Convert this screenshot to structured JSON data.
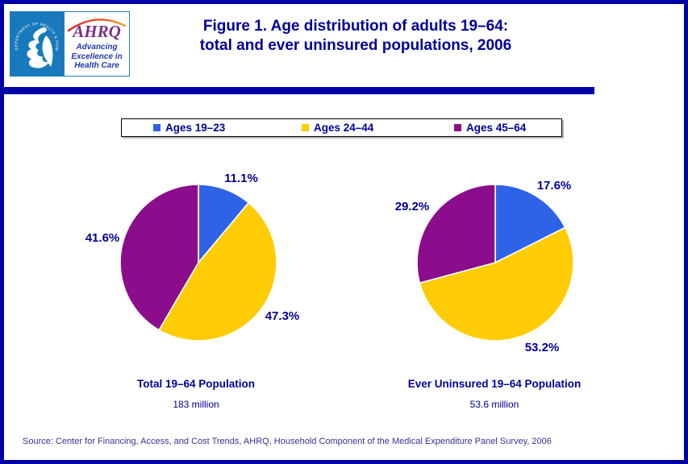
{
  "page": {
    "title_line1": "Figure 1. Age distribution of adults 19–64:",
    "title_line2": "total and ever uninsured populations, 2006",
    "source": "Source: Center for Financing, Access, and Cost Trends, AHRQ, Household Component of the Medical Expenditure Panel Survey, 2006"
  },
  "logo": {
    "ahrq_text": "AHRQ",
    "tagline_line1": "Advancing",
    "tagline_line2": "Excellence in",
    "tagline_line3": "Health Care",
    "hhs_seal_text": "DEPARTMENT OF HEALTH & HUMAN SERVICES · USA"
  },
  "legend": {
    "items": [
      {
        "label": "Ages 19–23",
        "color": "#2E63E8"
      },
      {
        "label": "Ages 24–44",
        "color": "#FFCC05"
      },
      {
        "label": "Ages 45–64",
        "color": "#8C0D8C"
      }
    ]
  },
  "colors": {
    "accent_navy": "#000099",
    "border_navy": "#0101A8",
    "hhs_blue": "#187ABC",
    "ahrq_purple": "#7B2E88"
  },
  "chart_data": [
    {
      "type": "pie",
      "title": "Total 19–64 Population",
      "subtitle": "183 million",
      "categories": [
        "Ages 19–23",
        "Ages 24–44",
        "Ages 45–64"
      ],
      "values": [
        11.1,
        47.3,
        41.6
      ],
      "labels": [
        "11.1%",
        "47.3%",
        "41.6%"
      ],
      "colors": [
        "#2E63E8",
        "#FFCC05",
        "#8C0D8C"
      ],
      "start_angle_deg": 0,
      "direction": "clockwise",
      "legend_position": "top"
    },
    {
      "type": "pie",
      "title": "Ever Uninsured 19–64 Population",
      "subtitle": "53.6 million",
      "categories": [
        "Ages 19–23",
        "Ages 24–44",
        "Ages 45–64"
      ],
      "values": [
        17.6,
        53.2,
        29.2
      ],
      "labels": [
        "17.6%",
        "53.2%",
        "29.2%"
      ],
      "colors": [
        "#2E63E8",
        "#FFCC05",
        "#8C0D8C"
      ],
      "start_angle_deg": 0,
      "direction": "clockwise",
      "legend_position": "top"
    }
  ]
}
